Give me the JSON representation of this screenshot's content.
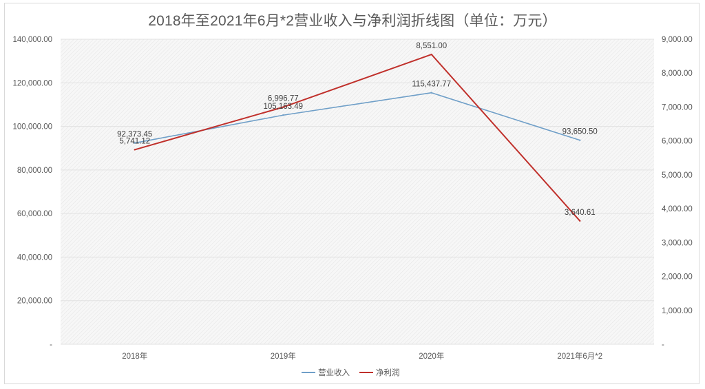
{
  "chart_data": {
    "type": "line",
    "title": "2018年至2021年6月*2营业收入与净利润折线图（单位：万元）",
    "categories": [
      "2018年",
      "2019年",
      "2020年",
      "2021年6月*2"
    ],
    "series": [
      {
        "name": "营业收入",
        "axis": "left",
        "color": "#6f9fc8",
        "values": [
          92373.45,
          105163.49,
          115437.77,
          93650.5
        ],
        "labels": [
          "92,373.45",
          "105,163.49",
          "115,437.77",
          "93,650.50"
        ]
      },
      {
        "name": "净利润",
        "axis": "right",
        "color": "#c0302b",
        "values": [
          5741.12,
          6996.77,
          8551.0,
          3640.61
        ],
        "labels": [
          "5,741.12",
          "6,996.77",
          "8,551.00",
          "3,640.61"
        ]
      }
    ],
    "y_left": {
      "min": 0,
      "max": 140000,
      "step": 20000,
      "tick_labels": [
        "-",
        "20,000.00",
        "40,000.00",
        "60,000.00",
        "80,000.00",
        "100,000.00",
        "120,000.00",
        "140,000.00"
      ]
    },
    "y_right": {
      "min": 0,
      "max": 9000,
      "step": 1000,
      "tick_labels": [
        "-",
        "1,000.00",
        "2,000.00",
        "3,000.00",
        "4,000.00",
        "5,000.00",
        "6,000.00",
        "7,000.00",
        "8,000.00",
        "9,000.00"
      ]
    },
    "legend_position": "bottom",
    "grid": true
  }
}
